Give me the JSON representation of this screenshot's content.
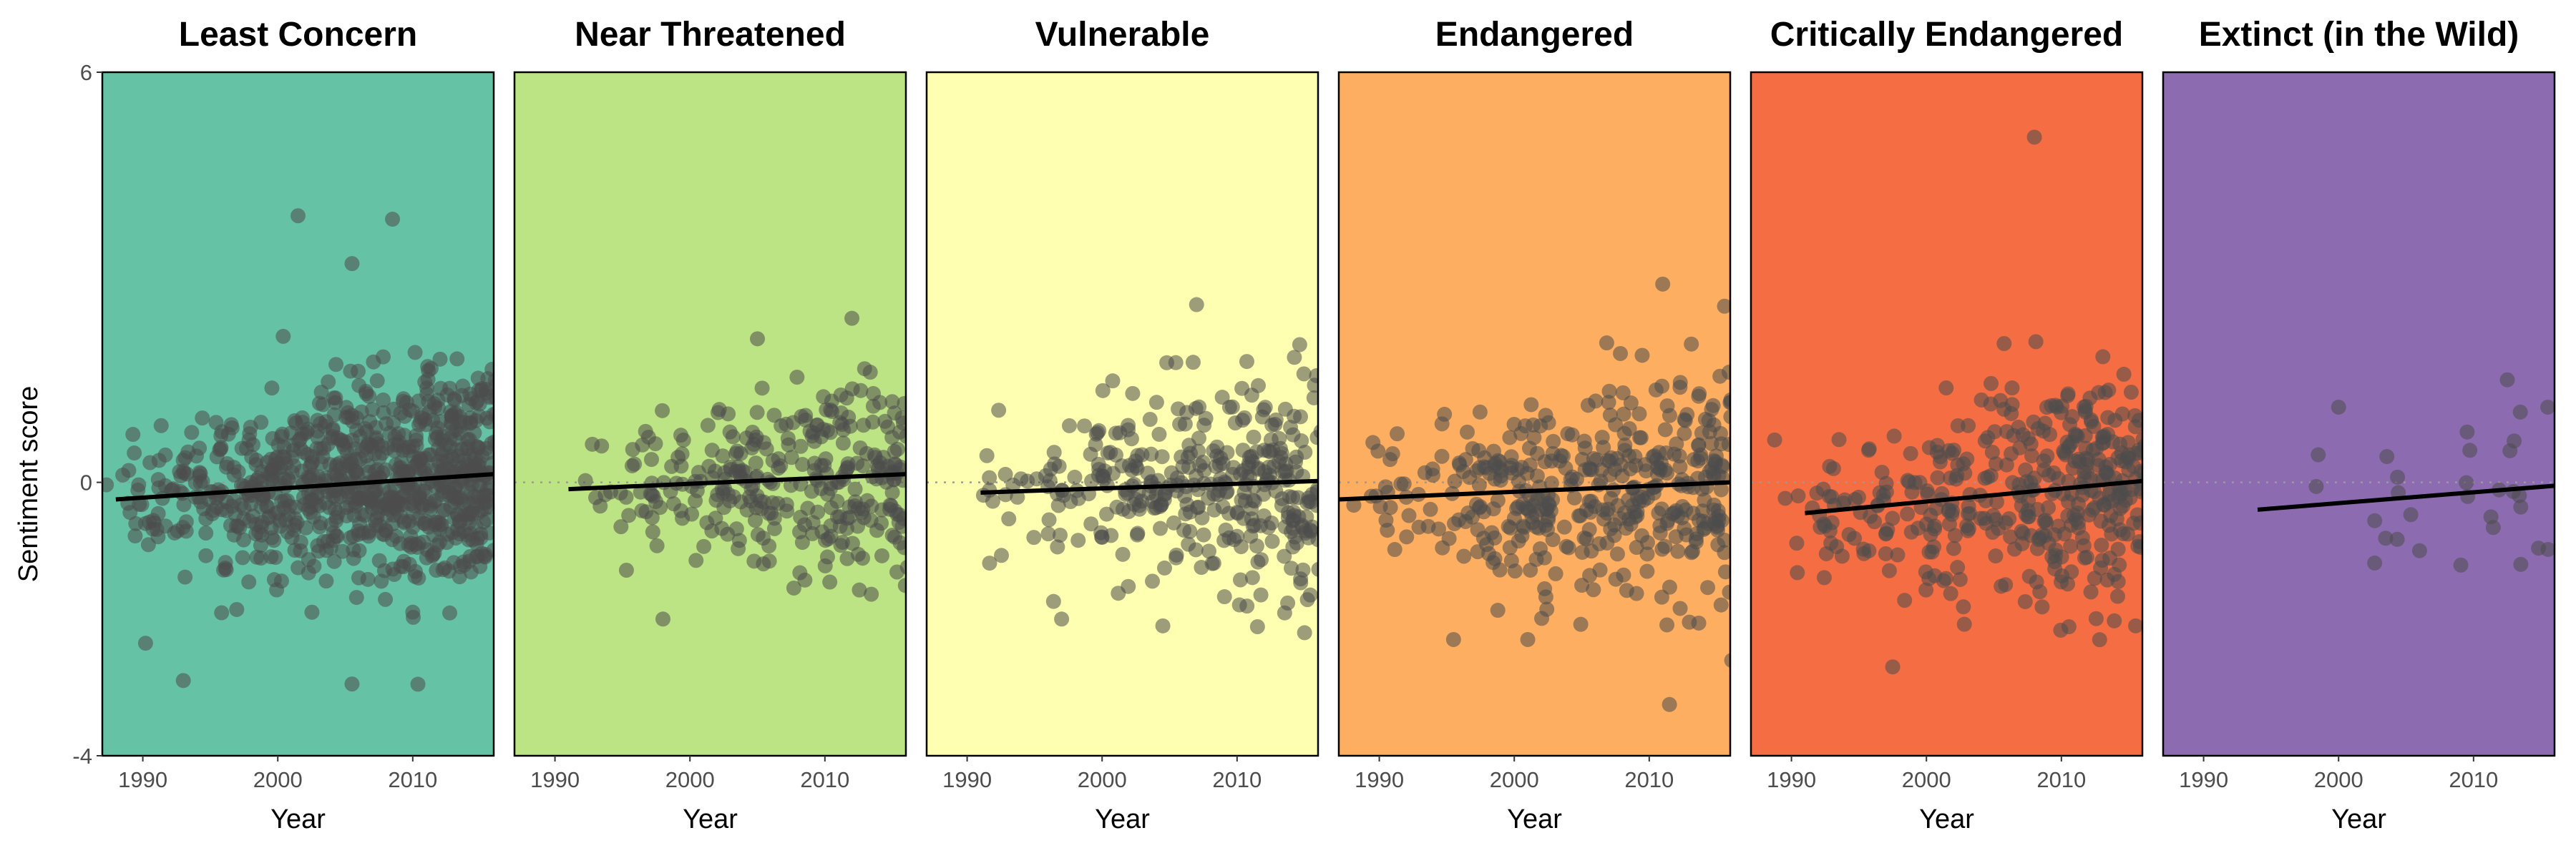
{
  "chart_data": {
    "type": "scatter",
    "ylabel": "Sentiment score",
    "xlabel": "Year",
    "ylim": [
      -4,
      6
    ],
    "y_ticks": [
      -4,
      0,
      6
    ],
    "xlim": [
      1987,
      2016
    ],
    "x_ticks": [
      1990,
      2000,
      2010
    ],
    "reference_line_y": 0,
    "facets": [
      {
        "title": "Least Concern",
        "color": "#66c2a5",
        "n_points": 900,
        "x_start": 1987,
        "trend": [
          [
            1988,
            -0.25
          ],
          [
            2016,
            0.12
          ]
        ],
        "y_spread": 0.85,
        "outliers": [
          [
            2001.5,
            3.9
          ],
          [
            2008.5,
            3.85
          ],
          [
            2005.5,
            3.2
          ],
          [
            1993.0,
            -2.9
          ],
          [
            2005.5,
            -2.95
          ]
        ]
      },
      {
        "title": "Near Threatened",
        "color": "#bce384",
        "n_points": 320,
        "x_start": 1990,
        "trend": [
          [
            1991,
            -0.1
          ],
          [
            2016,
            0.12
          ]
        ],
        "y_spread": 0.8,
        "outliers": [
          [
            1998.0,
            -2.0
          ],
          [
            2012.0,
            2.4
          ],
          [
            2005.0,
            2.1
          ]
        ]
      },
      {
        "title": "Vulnerable",
        "color": "#ffffb2",
        "n_points": 360,
        "x_start": 1990,
        "trend": [
          [
            1991,
            -0.15
          ],
          [
            2016,
            0.02
          ]
        ],
        "y_spread": 0.85,
        "outliers": [
          [
            2007.0,
            2.6
          ],
          [
            1997.0,
            -2.0
          ],
          [
            2004.5,
            -2.1
          ],
          [
            2015.0,
            -2.2
          ]
        ]
      },
      {
        "title": "Endangered",
        "color": "#fdae61",
        "n_points": 420,
        "x_start": 1987,
        "trend": [
          [
            1987,
            -0.25
          ],
          [
            2016,
            0.0
          ]
        ],
        "y_spread": 0.9,
        "outliers": [
          [
            2011.0,
            2.9
          ],
          [
            2001.0,
            -2.3
          ],
          [
            2011.5,
            -3.25
          ],
          [
            1995.5,
            -2.3
          ]
        ]
      },
      {
        "title": "Critically Endangered",
        "color": "#f46d43",
        "n_points": 400,
        "x_start": 1988,
        "trend": [
          [
            1991,
            -0.45
          ],
          [
            2016,
            0.02
          ]
        ],
        "y_spread": 0.9,
        "outliers": [
          [
            2008.0,
            5.05
          ],
          [
            1997.5,
            -2.7
          ],
          [
            2015.5,
            -2.1
          ]
        ]
      },
      {
        "title": "Extinct (in the Wild)",
        "color": "#8c6bb1",
        "n_points": 26,
        "x_start": 1993,
        "trend": [
          [
            1994,
            -0.4
          ],
          [
            2016,
            -0.05
          ]
        ],
        "y_spread": 0.7,
        "outliers": [
          [
            2000.0,
            1.1
          ],
          [
            2012.5,
            1.5
          ],
          [
            2015.5,
            1.1
          ],
          [
            2013.5,
            -1.2
          ],
          [
            2006.0,
            -1.0
          ]
        ]
      }
    ]
  }
}
